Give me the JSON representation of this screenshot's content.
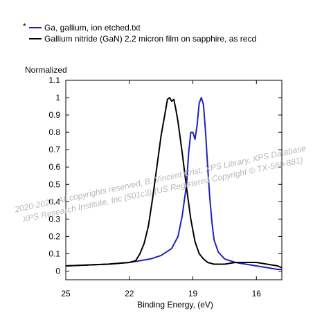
{
  "chart_data": {
    "type": "line",
    "ylabel": "Normalized",
    "xlabel": "Binding Energy, (eV)",
    "x_reversed": true,
    "xlim": [
      25,
      14.8
    ],
    "ylim": [
      -0.05,
      1.1
    ],
    "x_ticks": [
      25,
      22,
      19,
      16
    ],
    "y_ticks": [
      0,
      0.1,
      0.2,
      0.3,
      0.4,
      0.5,
      0.6,
      0.7,
      0.8,
      0.9,
      1,
      1.1
    ],
    "legend_placement": "top-left outside plot",
    "legend_marker": "*",
    "series": [
      {
        "name": "Ga, gallium, ion etched.txt",
        "color": "#1f1fbf",
        "x": [
          25,
          24,
          23,
          22,
          21.5,
          21,
          20.5,
          20,
          19.7,
          19.5,
          19.3,
          19.2,
          19.1,
          19.0,
          18.9,
          18.8,
          18.7,
          18.6,
          18.5,
          18.4,
          18.3,
          18.2,
          18.1,
          18.0,
          17.8,
          17.5,
          17,
          16.5,
          16,
          15.5,
          15,
          14.8
        ],
        "y": [
          0.03,
          0.035,
          0.04,
          0.05,
          0.06,
          0.07,
          0.09,
          0.13,
          0.2,
          0.32,
          0.5,
          0.68,
          0.8,
          0.8,
          0.76,
          0.84,
          0.97,
          1.0,
          0.96,
          0.8,
          0.6,
          0.42,
          0.28,
          0.18,
          0.11,
          0.07,
          0.05,
          0.04,
          0.03,
          0.02,
          0.01,
          0.01
        ]
      },
      {
        "name": "Gallium nitride (GaN) 2.2 micron film on sapphire, as recd",
        "color": "#000000",
        "x": [
          25,
          24,
          23,
          22,
          21.7,
          21.5,
          21.3,
          21.1,
          20.9,
          20.7,
          20.5,
          20.3,
          20.2,
          20.1,
          20.0,
          19.9,
          19.8,
          19.7,
          19.5,
          19.3,
          19.1,
          18.9,
          18.7,
          18.5,
          18.3,
          18.0,
          17.5,
          17,
          16.5,
          16,
          15.5,
          15,
          14.8
        ],
        "y": [
          0.03,
          0.035,
          0.04,
          0.05,
          0.06,
          0.1,
          0.16,
          0.26,
          0.42,
          0.6,
          0.78,
          0.92,
          0.99,
          1.0,
          0.98,
          0.99,
          0.93,
          0.86,
          0.68,
          0.48,
          0.3,
          0.17,
          0.1,
          0.07,
          0.05,
          0.04,
          0.04,
          0.05,
          0.05,
          0.05,
          0.04,
          0.03,
          0.02
        ]
      }
    ]
  },
  "watermark": {
    "line1": "2020-2025, All copyrights reserved,   B. Vincent Crist,   XPS Library, XPS Database",
    "line2": "XPS Research Institute, Inc (501c3)   (US Registered Copyright © TX-560-881)"
  }
}
